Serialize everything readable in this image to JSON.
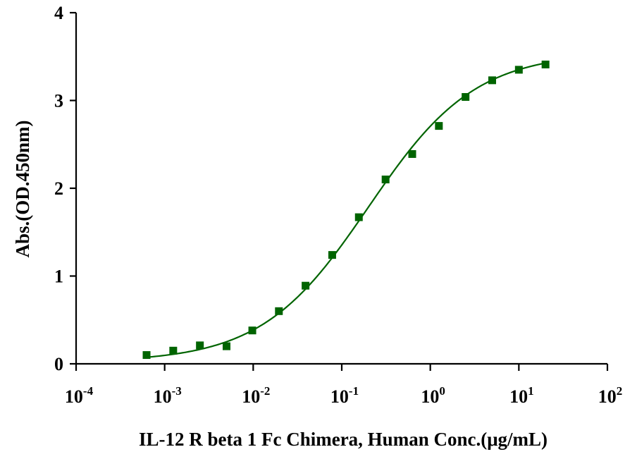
{
  "chart_data": {
    "type": "scatter",
    "xlabel": "IL-12 R beta 1 Fc Chimera, Human Conc.(μg/mL)",
    "ylabel": "Abs.(OD.450nm)",
    "x_scale": "log",
    "xlim": [
      0.0001,
      100
    ],
    "ylim": [
      0,
      4
    ],
    "x_ticks": [
      {
        "base": "10",
        "exp": "-4"
      },
      {
        "base": "10",
        "exp": "-3"
      },
      {
        "base": "10",
        "exp": "-2"
      },
      {
        "base": "10",
        "exp": "-1"
      },
      {
        "base": "10",
        "exp": "0"
      },
      {
        "base": "10",
        "exp": "1"
      },
      {
        "base": "10",
        "exp": "2"
      }
    ],
    "y_ticks": [
      "0",
      "1",
      "2",
      "3",
      "4"
    ],
    "grid": false,
    "color": "#006400",
    "series": [
      {
        "marker": "square",
        "x": [
          0.000625,
          0.00125,
          0.0025,
          0.005,
          0.00977,
          0.0195,
          0.039,
          0.078,
          0.156,
          0.3125,
          0.625,
          1.25,
          2.5,
          5,
          10,
          20
        ],
        "y": [
          0.1,
          0.15,
          0.21,
          0.2,
          0.38,
          0.6,
          0.89,
          1.24,
          1.67,
          2.1,
          2.39,
          2.71,
          3.04,
          3.23,
          3.35,
          3.41
        ]
      }
    ],
    "fit": {
      "type": "4PL",
      "bottom": 0.02,
      "top": 3.55,
      "ec50": 0.2,
      "hill": 0.72,
      "x_range": [
        0.000625,
        20
      ]
    }
  }
}
